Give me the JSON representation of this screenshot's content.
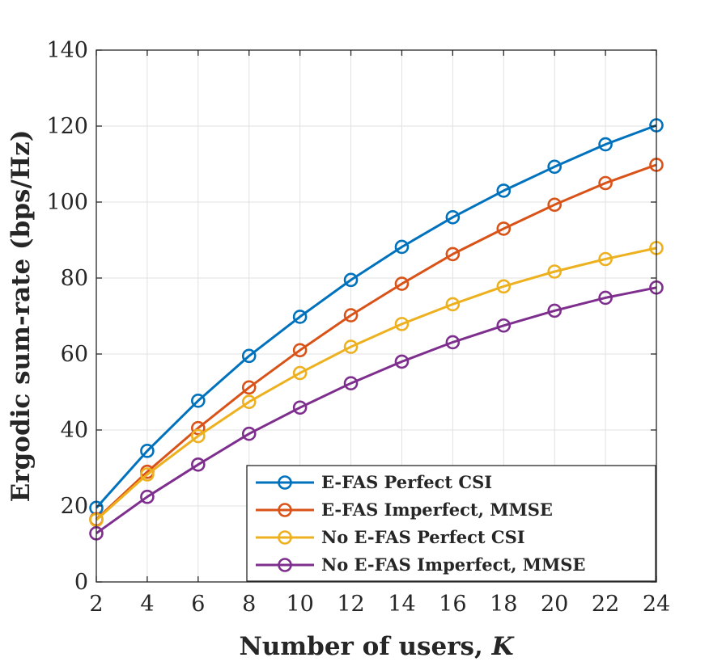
{
  "chart_data": {
    "type": "line",
    "x": [
      2,
      4,
      6,
      8,
      10,
      12,
      14,
      16,
      18,
      20,
      22,
      24
    ],
    "xlabel": "Number of users, ",
    "xlabel_var": "K",
    "ylabel": "Ergodic sum-rate (bps/Hz)",
    "xlim": [
      2,
      24
    ],
    "ylim": [
      0,
      140
    ],
    "xticks": [
      2,
      4,
      6,
      8,
      10,
      12,
      14,
      16,
      18,
      20,
      22,
      24
    ],
    "yticks": [
      0,
      20,
      40,
      60,
      80,
      100,
      120,
      140
    ],
    "grid": true,
    "legend_position": "bottom-right",
    "marker": "circle",
    "series": [
      {
        "name": "E-FAS Perfect CSI",
        "color": "#0072BD",
        "values": [
          19.5,
          34.5,
          47.7,
          59.5,
          69.8,
          79.5,
          88.2,
          96.0,
          103.0,
          109.3,
          115.2,
          120.2
        ]
      },
      {
        "name": "E-FAS Imperfect, MMSE",
        "color": "#D95319",
        "values": [
          16.5,
          29.0,
          40.5,
          51.2,
          61.0,
          70.2,
          78.5,
          86.3,
          93.0,
          99.3,
          105.0,
          109.8
        ]
      },
      {
        "name": "No E-FAS Perfect CSI",
        "color": "#EDB120",
        "values": [
          16.3,
          28.3,
          38.4,
          47.4,
          55.0,
          61.9,
          67.9,
          73.1,
          77.8,
          81.7,
          85.0,
          87.9
        ]
      },
      {
        "name": "No E-FAS Imperfect, MMSE",
        "color": "#7E2F8E",
        "values": [
          12.8,
          22.4,
          30.9,
          39.0,
          45.9,
          52.3,
          58.0,
          63.1,
          67.5,
          71.4,
          74.8,
          77.5
        ]
      }
    ]
  }
}
